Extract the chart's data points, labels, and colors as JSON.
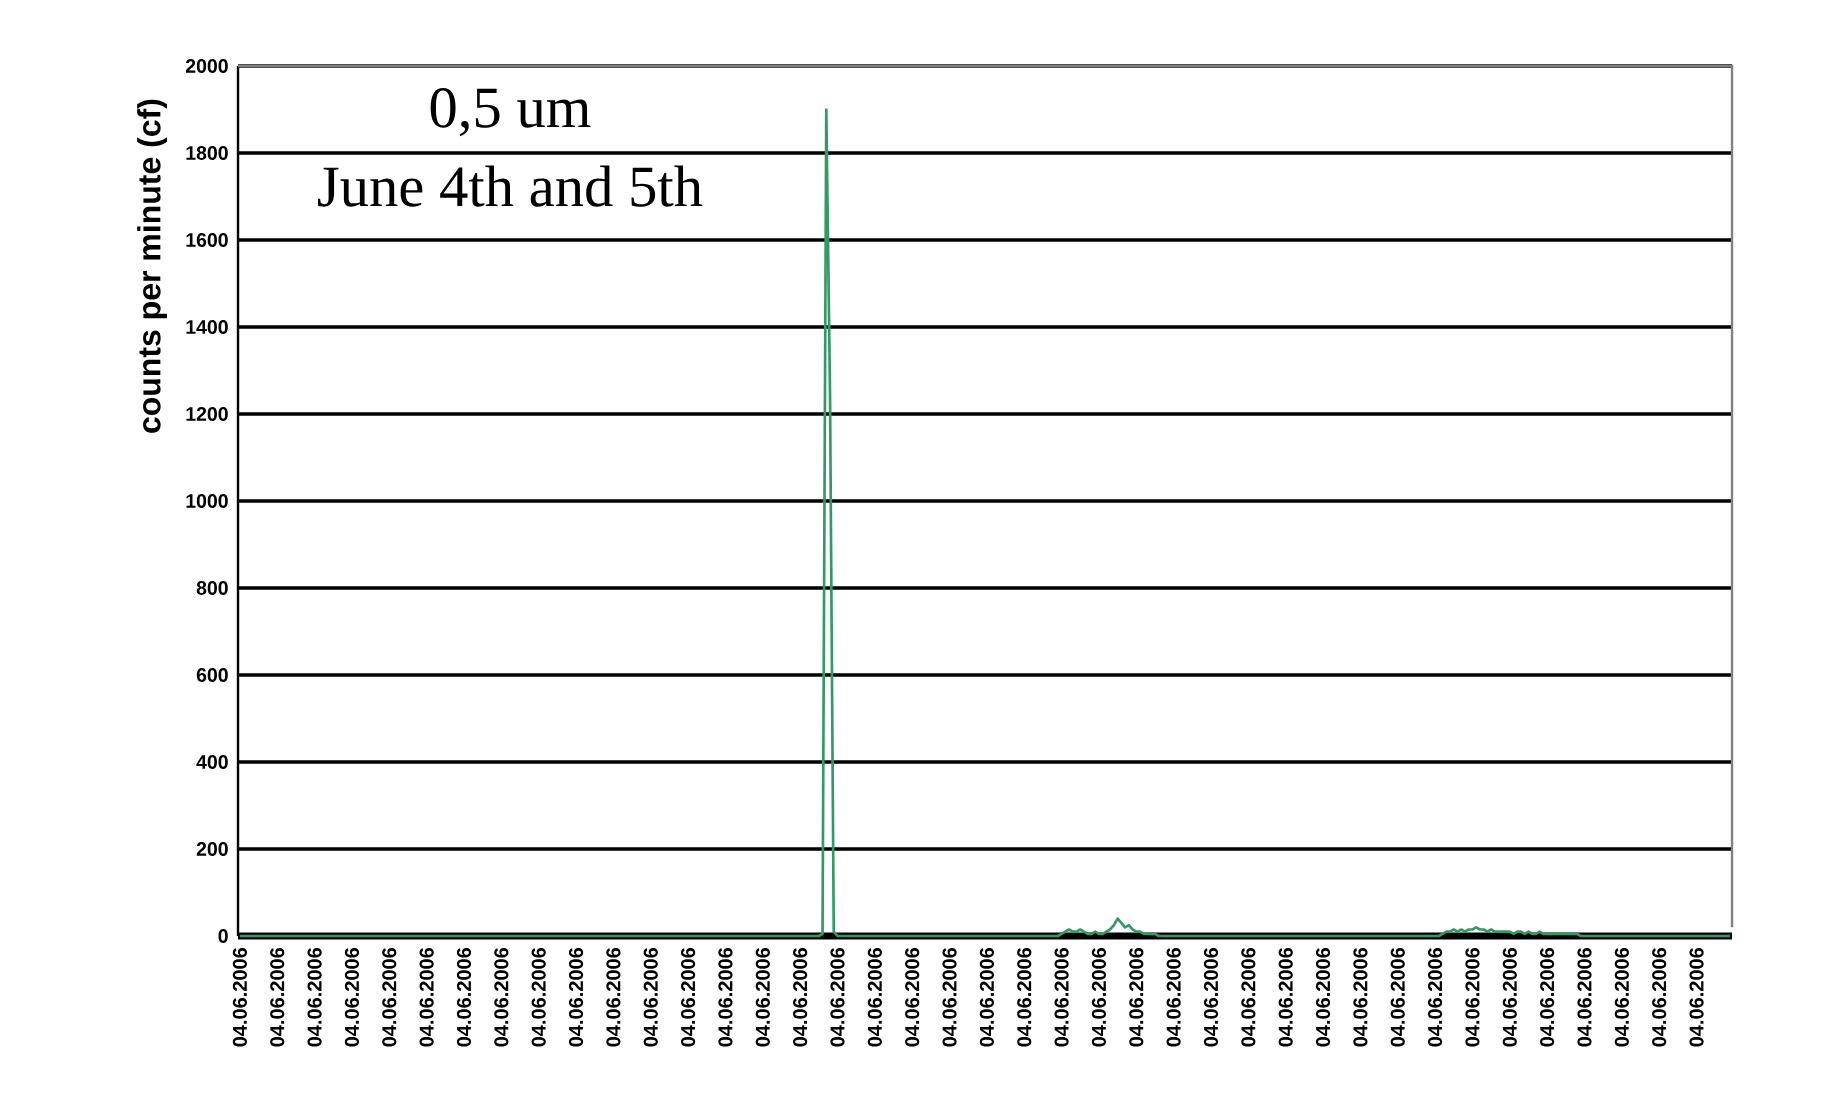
{
  "chart_data": {
    "type": "line",
    "title": "0,5 um",
    "subtitle": "June 4th and 5th",
    "ylabel": "counts per minute (cf)",
    "categories": [
      "04.06.2006",
      null,
      null,
      null,
      null,
      null,
      null,
      null,
      null,
      null,
      "04.06.2006",
      null,
      null,
      null,
      null,
      null,
      null,
      null,
      null,
      null,
      "04.06.2006",
      null,
      null,
      null,
      null,
      null,
      null,
      null,
      null,
      null,
      "04.06.2006",
      null,
      null,
      null,
      null,
      null,
      null,
      null,
      null,
      null,
      "04.06.2006",
      null,
      null,
      null,
      null,
      null,
      null,
      null,
      null,
      null,
      "04.06.2006",
      null,
      null,
      null,
      null,
      null,
      null,
      null,
      null,
      null,
      "04.06.2006",
      null,
      null,
      null,
      null,
      null,
      null,
      null,
      null,
      null,
      "04.06.2006",
      null,
      null,
      null,
      null,
      null,
      null,
      null,
      null,
      null,
      "04.06.2006",
      null,
      null,
      null,
      null,
      null,
      null,
      null,
      null,
      null,
      "04.06.2006",
      null,
      null,
      null,
      null,
      null,
      null,
      null,
      null,
      null,
      "04.06.2006",
      null,
      null,
      null,
      null,
      null,
      null,
      null,
      null,
      null,
      "04.06.2006",
      null,
      null,
      null,
      null,
      null,
      null,
      null,
      null,
      null,
      "04.06.2006",
      null,
      null,
      null,
      null,
      null,
      null,
      null,
      null,
      null,
      "04.06.2006",
      null,
      null,
      null,
      null,
      null,
      null,
      null,
      null,
      null,
      "04.06.2006",
      null,
      null,
      null,
      null,
      null,
      null,
      null,
      null,
      null,
      "04.06.2006",
      null,
      null,
      null,
      null,
      null,
      null,
      null,
      null,
      null,
      "04.06.2006",
      null,
      null,
      null,
      null,
      null,
      null,
      null,
      null,
      null,
      "04.06.2006",
      null,
      null,
      null,
      null,
      null,
      null,
      null,
      null,
      null,
      "04.06.2006",
      null,
      null,
      null,
      null,
      null,
      null,
      null,
      null,
      null,
      "04.06.2006",
      null,
      null,
      null,
      null,
      null,
      null,
      null,
      null,
      null,
      "04.06.2006",
      null,
      null,
      null,
      null,
      null,
      null,
      null,
      null,
      null,
      "04.06.2006",
      null,
      null,
      null,
      null,
      null,
      null,
      null,
      null,
      null,
      "04.06.2006",
      null,
      null,
      null,
      null,
      null,
      null,
      null,
      null,
      null,
      "04.06.2006",
      null,
      null,
      null,
      null,
      null,
      null,
      null,
      null,
      null,
      "04.06.2006",
      null,
      null,
      null,
      null,
      null,
      null,
      null,
      null,
      null,
      "04.06.2006",
      null,
      null,
      null,
      null,
      null,
      null,
      null,
      null,
      null,
      "04.06.2006",
      null,
      null,
      null,
      null,
      null,
      null,
      null,
      null,
      null,
      "04.06.2006",
      null,
      null,
      null,
      null,
      null,
      null,
      null,
      null,
      null,
      "04.06.2006",
      null,
      null,
      null,
      null,
      null,
      null,
      null,
      null,
      null,
      "04.06.2006",
      null,
      null,
      null,
      null,
      null,
      null,
      null,
      null,
      null,
      "04.06.2006",
      null,
      null,
      null,
      null,
      null,
      null,
      null,
      null,
      null,
      "04.06.2006",
      null,
      null,
      null,
      null,
      null,
      null,
      null,
      null,
      null,
      "04.06.2006",
      null,
      null,
      null,
      null,
      null,
      null,
      null,
      null,
      null,
      "04.06.2006",
      null,
      null,
      null,
      null,
      null,
      null,
      null,
      null,
      null,
      "04.06.2006",
      null,
      null,
      null,
      null,
      null,
      null,
      null,
      null,
      null,
      "04.06.2006",
      null,
      null,
      null,
      null,
      null,
      null,
      null,
      null,
      null,
      "04.06.2006",
      null,
      null,
      null,
      null,
      null,
      null,
      null,
      null,
      null,
      "04.06.2006",
      null,
      null,
      null,
      null,
      null,
      null,
      null,
      null,
      null,
      "04.06.2006",
      null,
      null,
      null,
      null,
      null,
      null,
      null,
      null,
      null,
      "04.06.2006",
      null,
      null,
      null,
      null,
      null,
      null,
      null,
      null,
      null
    ],
    "ylim": [
      0,
      2000
    ],
    "yticks": [
      0,
      200,
      400,
      600,
      800,
      1000,
      1200,
      1400,
      1600,
      1800,
      2000
    ],
    "grid": "y",
    "series": [
      {
        "color": "#339966",
        "values": [
          0,
          0,
          0,
          0,
          0,
          0,
          0,
          0,
          0,
          0,
          0,
          0,
          0,
          0,
          0,
          0,
          0,
          0,
          0,
          0,
          0,
          0,
          0,
          0,
          0,
          0,
          0,
          0,
          0,
          0,
          0,
          0,
          0,
          0,
          0,
          0,
          0,
          0,
          0,
          0,
          0,
          0,
          0,
          0,
          0,
          0,
          0,
          0,
          0,
          0,
          0,
          0,
          0,
          0,
          0,
          0,
          0,
          0,
          0,
          0,
          0,
          0,
          0,
          0,
          0,
          0,
          0,
          0,
          0,
          0,
          0,
          0,
          0,
          0,
          0,
          0,
          0,
          0,
          0,
          0,
          0,
          0,
          0,
          0,
          0,
          0,
          0,
          0,
          0,
          0,
          0,
          0,
          0,
          0,
          0,
          0,
          0,
          0,
          0,
          0,
          0,
          0,
          0,
          0,
          0,
          0,
          0,
          0,
          0,
          0,
          0,
          0,
          0,
          0,
          0,
          0,
          0,
          0,
          0,
          0,
          0,
          0,
          0,
          0,
          0,
          0,
          0,
          0,
          0,
          0,
          0,
          0,
          0,
          0,
          0,
          0,
          0,
          0,
          0,
          0,
          0,
          0,
          0,
          0,
          0,
          0,
          0,
          0,
          0,
          0,
          0,
          0,
          0,
          0,
          0,
          0,
          5,
          1900,
          1250,
          10,
          0,
          0,
          0,
          0,
          0,
          0,
          0,
          0,
          0,
          0,
          0,
          0,
          0,
          0,
          0,
          0,
          0,
          0,
          0,
          0,
          0,
          0,
          0,
          0,
          0,
          0,
          0,
          0,
          0,
          0,
          0,
          0,
          0,
          0,
          0,
          0,
          0,
          0,
          0,
          0,
          0,
          0,
          0,
          0,
          0,
          0,
          0,
          0,
          0,
          0,
          0,
          0,
          0,
          0,
          0,
          0,
          0,
          0,
          0,
          0,
          5,
          10,
          15,
          10,
          10,
          15,
          10,
          5,
          5,
          10,
          5,
          5,
          10,
          15,
          25,
          40,
          30,
          20,
          25,
          15,
          10,
          10,
          5,
          5,
          5,
          5,
          0,
          0,
          0,
          0,
          0,
          0,
          0,
          0,
          0,
          0,
          0,
          0,
          0,
          0,
          0,
          0,
          0,
          0,
          0,
          0,
          0,
          0,
          0,
          0,
          0,
          0,
          0,
          0,
          0,
          0,
          0,
          0,
          0,
          0,
          0,
          0,
          0,
          0,
          0,
          0,
          0,
          0,
          0,
          0,
          0,
          0,
          0,
          0,
          0,
          0,
          0,
          0,
          0,
          0,
          0,
          0,
          0,
          0,
          0,
          0,
          0,
          0,
          0,
          0,
          0,
          0,
          0,
          0,
          0,
          0,
          0,
          0,
          0,
          0,
          0,
          0,
          5,
          10,
          10,
          15,
          10,
          15,
          10,
          15,
          15,
          20,
          15,
          15,
          10,
          15,
          10,
          10,
          10,
          10,
          10,
          5,
          10,
          10,
          5,
          10,
          5,
          5,
          10,
          5,
          5,
          5,
          5,
          5,
          5,
          5,
          5,
          5,
          5,
          0,
          0,
          0,
          0,
          0,
          0,
          0,
          0,
          0,
          0,
          0,
          0,
          0,
          0,
          0,
          0,
          0,
          0,
          0,
          0,
          0,
          0,
          0,
          0,
          0,
          0,
          0,
          0,
          0,
          0,
          0,
          0,
          0,
          0,
          0,
          0,
          0,
          0,
          0,
          0,
          0
        ]
      }
    ]
  }
}
